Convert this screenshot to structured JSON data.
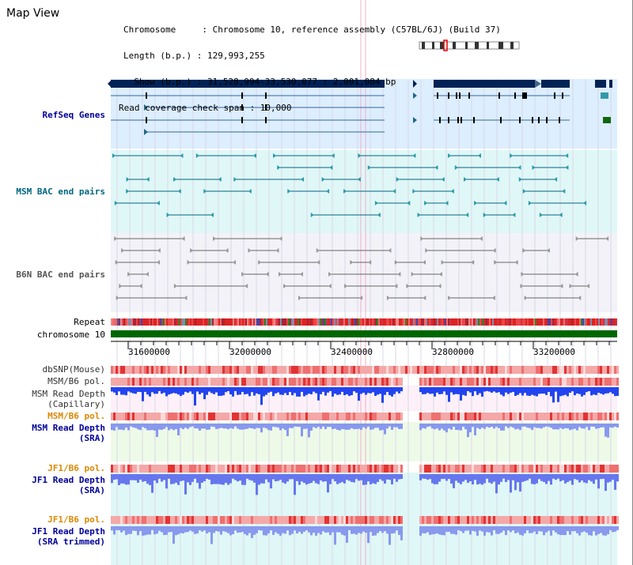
{
  "view": {
    "title": "Map View",
    "info_lines": [
      "Chromosome     : Chromosome 10, reference assembly (C57BL/6J) (Build 37)",
      "Length (b.p.) : 129,993,255",
      "  Show (b.p.) : 31,528,994-33,530,077 : 2,001,084 bp",
      "Read coverage check span : 10,000"
    ]
  },
  "tracks": {
    "refseq": "RefSeq Genes",
    "msm_bac": "MSM BAC end pairs",
    "b6n_bac": "B6N BAC end pairs",
    "repeat": "Repeat",
    "chromosome": "chromosome 10",
    "dbsnp": "dbSNP(Mouse)",
    "msm_b6_pol_1": "MSM/B6 pol.",
    "msm_depth_cap_1": "MSM Read Depth",
    "msm_depth_cap_2": "(Capillary)",
    "msm_b6_pol_2": "MSM/B6 pol.",
    "msm_depth_sra_1": "MSM Read Depth",
    "msm_depth_sra_2": "(SRA)",
    "jf1_b6_pol_1": "JF1/B6 pol.",
    "jf1_depth_sra_1": "JF1 Read Depth",
    "jf1_depth_sra_2": "(SRA)",
    "jf1_b6_pol_2": "JF1/B6 pol.",
    "jf1_depth_trim_1": "JF1 Read Depth",
    "jf1_depth_trim_2": "(SRA trimmed)"
  },
  "ruler": {
    "ticks": [
      "31600000",
      "32000000",
      "32400000",
      "32800000",
      "33200000"
    ]
  },
  "colors": {
    "refseq_label": "#000099",
    "msm_label": "#006680",
    "b6n_label": "#555555",
    "pol_label_orange": "#dd8800",
    "depth_label_blue": "#000099",
    "refseq_bg": "#ddeeff",
    "msm_bg": "#e0f7f7",
    "b6n_bg": "#f2f2f8",
    "gene_dark": "#002255",
    "chrom_green": "#006600"
  }
}
